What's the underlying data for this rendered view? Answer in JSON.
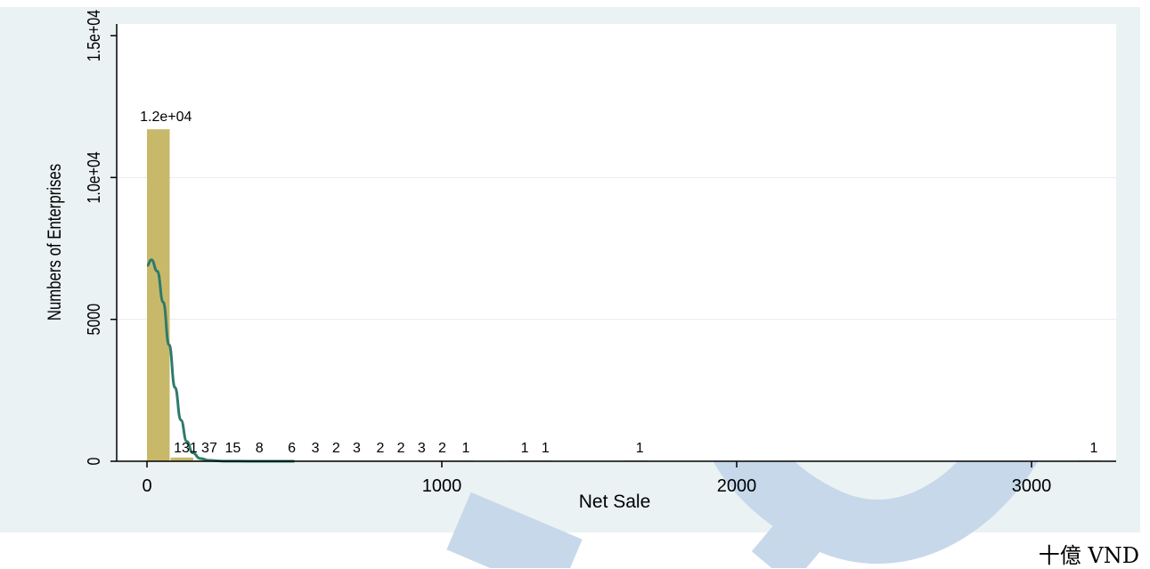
{
  "chart_data": {
    "type": "bar",
    "title": "",
    "xlabel": "Net Sale",
    "ylabel": "Numbers of Enterprises",
    "xlim": [
      -100,
      3270
    ],
    "ylim": [
      0,
      15000
    ],
    "x_ticks": [
      0,
      1000,
      2000,
      3000
    ],
    "x_tick_labels": [
      "0",
      "1000",
      "2000",
      "3000"
    ],
    "y_ticks": [
      0,
      5000,
      10000,
      15000
    ],
    "y_tick_labels": [
      "0",
      "5000",
      "1.0e+04",
      "1.5e+04"
    ],
    "grid": true,
    "bin_width": 80,
    "series": [
      {
        "bar_color": "#c8b96a",
        "bins": [
          {
            "x": 0,
            "value": 11700,
            "label": "1.2e+04"
          },
          {
            "x": 80,
            "value": 131,
            "label": "131"
          },
          {
            "x": 160,
            "value": 37,
            "label": "37"
          },
          {
            "x": 240,
            "value": 15,
            "label": "15"
          },
          {
            "x": 330,
            "value": 8,
            "label": "8"
          },
          {
            "x": 440,
            "value": 6,
            "label": "6"
          },
          {
            "x": 520,
            "value": 3,
            "label": "3"
          },
          {
            "x": 590,
            "value": 2,
            "label": "2"
          },
          {
            "x": 660,
            "value": 3,
            "label": "3"
          },
          {
            "x": 740,
            "value": 2,
            "label": "2"
          },
          {
            "x": 810,
            "value": 2,
            "label": "2"
          },
          {
            "x": 880,
            "value": 3,
            "label": "3"
          },
          {
            "x": 950,
            "value": 2,
            "label": "2"
          },
          {
            "x": 1030,
            "value": 1,
            "label": "1"
          },
          {
            "x": 1230,
            "value": 1,
            "label": "1"
          },
          {
            "x": 1300,
            "value": 1,
            "label": "1"
          },
          {
            "x": 1620,
            "value": 1,
            "label": "1"
          },
          {
            "x": 3160,
            "value": 1,
            "label": "1"
          }
        ]
      },
      {
        "type": "line",
        "color": "#2e7a6b",
        "x": [
          0,
          15,
          35,
          55,
          75,
          95,
          115,
          135,
          155,
          180,
          210,
          260,
          350,
          500
        ],
        "values": [
          6900,
          7100,
          6700,
          5600,
          4100,
          2600,
          1450,
          700,
          300,
          100,
          30,
          5,
          0,
          0
        ]
      }
    ]
  },
  "unit_note": "十億 VND",
  "colors": {
    "panel": "#eaf2f3",
    "plot": "#ffffff",
    "grid": "#e6eded",
    "bar": "#c8b96a",
    "density": "#2e7a6b",
    "watermark": "#c7d8ea"
  }
}
